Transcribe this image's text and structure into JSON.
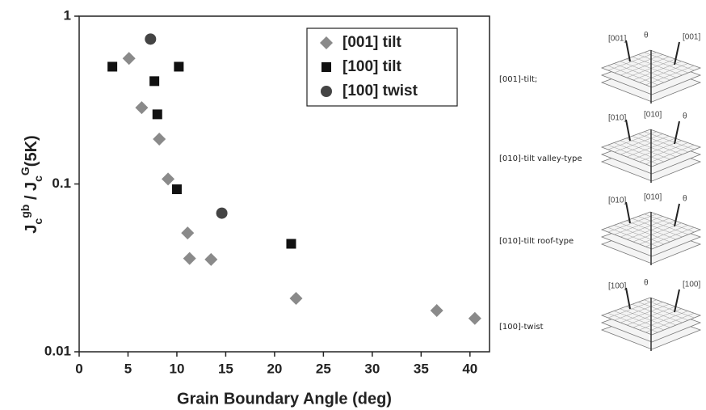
{
  "chart_data": {
    "type": "scatter",
    "xlabel": "Grain Boundary Angle (deg)",
    "ylabel": [
      "J",
      "c",
      "gb",
      " / J",
      "c",
      "G",
      "(5K)"
    ],
    "xlim": [
      0,
      42
    ],
    "xticks": [
      0,
      5,
      10,
      15,
      20,
      25,
      30,
      35,
      40
    ],
    "ylim": [
      0.01,
      1
    ],
    "yticks": [
      0.01,
      0.1,
      1
    ],
    "log_y": true,
    "legend": "upper right",
    "series": [
      {
        "name": "[001] tilt",
        "marker": "diamond",
        "color": "#8a8a8a",
        "x": [
          5.1,
          6.4,
          8.2,
          9.1,
          11.1,
          11.3,
          13.5,
          22.2,
          36.6,
          40.5
        ],
        "values": [
          0.56,
          0.285,
          0.185,
          0.107,
          0.051,
          0.036,
          0.0355,
          0.0208,
          0.0176,
          0.0158
        ]
      },
      {
        "name": "[100] tilt",
        "marker": "square",
        "color": "#111111",
        "x": [
          3.4,
          7.7,
          8.0,
          10.2,
          10.0,
          21.7
        ],
        "values": [
          0.5,
          0.41,
          0.26,
          0.5,
          0.093,
          0.044
        ]
      },
      {
        "name": "[100] twist",
        "marker": "circle",
        "color": "#444444",
        "x": [
          7.3,
          14.6
        ],
        "values": [
          0.73,
          0.067
        ]
      }
    ]
  },
  "diagram": {
    "panels": [
      {
        "label": "[001]-tilt;",
        "tags": [
          "θ",
          "[001]",
          "[001]"
        ]
      },
      {
        "label": "[010]-tilt valley-type",
        "tags": [
          "[010]",
          "[010]",
          "θ"
        ]
      },
      {
        "label": "[010]-tilt roof-type",
        "tags": [
          "[010]",
          "[010]",
          "θ"
        ]
      },
      {
        "label": "[100]-twist",
        "tags": [
          "θ",
          "[100]",
          "[100]"
        ]
      }
    ]
  }
}
